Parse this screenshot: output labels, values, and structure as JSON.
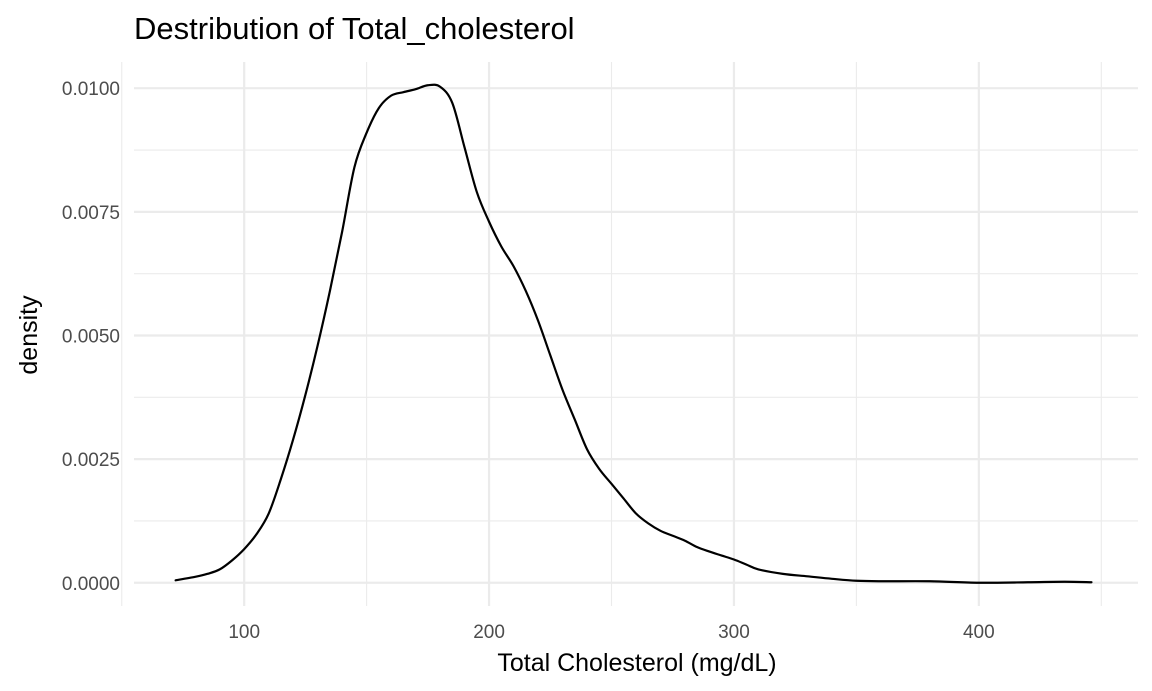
{
  "chart_data": {
    "type": "line",
    "title": "Destribution of Total_cholesterol",
    "xlabel": "Total Cholesterol (mg/dL)",
    "ylabel": "density",
    "xlim": [
      55,
      465
    ],
    "ylim": [
      -0.00047,
      0.01053
    ],
    "grid": true,
    "x_ticks": [
      100,
      200,
      300,
      400
    ],
    "x_tick_labels": [
      "100",
      "200",
      "300",
      "400"
    ],
    "x_minor_ticks": [
      50,
      150,
      250,
      350,
      450
    ],
    "y_ticks": [
      0.0,
      0.0025,
      0.005,
      0.0075,
      0.01
    ],
    "y_tick_labels": [
      "0.0000",
      "0.0025",
      "0.0050",
      "0.0075",
      "0.0100"
    ],
    "y_minor_ticks": [
      0.00125,
      0.00375,
      0.00625,
      0.00875
    ],
    "series": [
      {
        "x": [
          72,
          80,
          85,
          90,
          95,
          100,
          105,
          110,
          115,
          120,
          125,
          130,
          135,
          140,
          145,
          150,
          155,
          160,
          165,
          170,
          175,
          180,
          185,
          190,
          195,
          200,
          205,
          210,
          215,
          220,
          225,
          230,
          235,
          240,
          245,
          250,
          255,
          260,
          265,
          270,
          275,
          280,
          285,
          290,
          295,
          300,
          305,
          310,
          320,
          330,
          340,
          350,
          360,
          380,
          400,
          420,
          435,
          446
        ],
        "y": [
          5e-05,
          0.00012,
          0.00018,
          0.00027,
          0.00045,
          0.00068,
          0.00098,
          0.0014,
          0.0021,
          0.0029,
          0.0038,
          0.0048,
          0.0059,
          0.0071,
          0.0084,
          0.0091,
          0.0096,
          0.00985,
          0.00992,
          0.00998,
          0.01006,
          0.01003,
          0.0097,
          0.0088,
          0.0079,
          0.0073,
          0.0068,
          0.0064,
          0.0059,
          0.0053,
          0.0046,
          0.0039,
          0.0033,
          0.0027,
          0.0023,
          0.002,
          0.0017,
          0.0014,
          0.0012,
          0.00105,
          0.00095,
          0.00085,
          0.00072,
          0.00063,
          0.00055,
          0.00047,
          0.00037,
          0.00027,
          0.00018,
          0.00013,
          8e-05,
          4e-05,
          3e-05,
          3e-05,
          0.0,
          1e-05,
          2e-05,
          1e-05
        ]
      }
    ]
  }
}
